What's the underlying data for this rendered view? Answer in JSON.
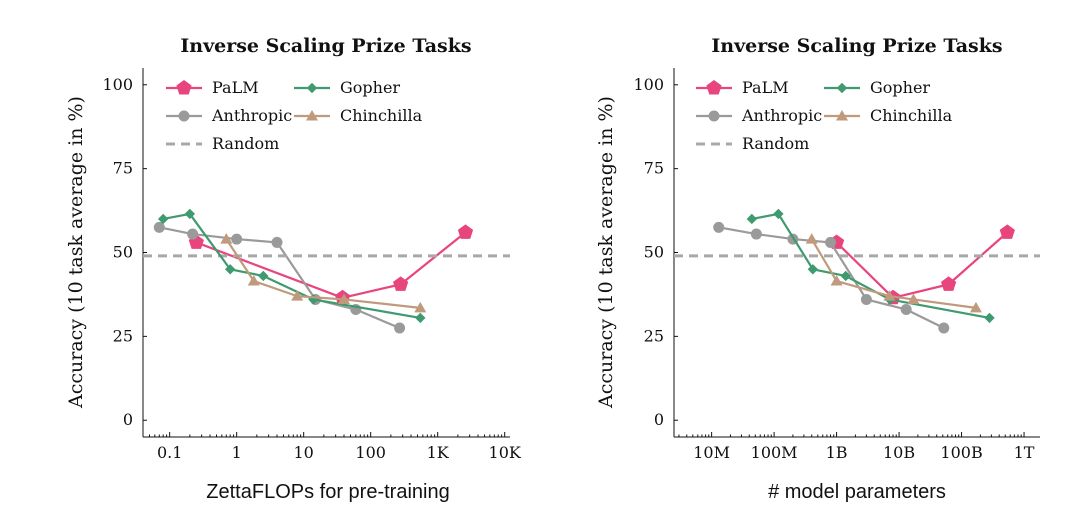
{
  "colors": {
    "PaLM": "#e8457e",
    "Gopher": "#3f9a6f",
    "Anthropic": "#9a9a9a",
    "Chinchilla": "#c09a7c",
    "Random": "#a8a8a8"
  },
  "chart_data": [
    {
      "type": "line",
      "title": "Inverse Scaling Prize Tasks",
      "xlabel": "ZettaFLOPs for pre-training",
      "ylabel": "Accuracy (10 task average in %)",
      "xscale": "log",
      "xlim": [
        0.04,
        12000
      ],
      "ylim": [
        -5,
        105
      ],
      "xticks": [
        0.1,
        1,
        10,
        100,
        1000,
        10000
      ],
      "xtick_labels": [
        "0.1",
        "1",
        "10",
        "100",
        "1K",
        "10K"
      ],
      "yticks": [
        0,
        25,
        50,
        75,
        100
      ],
      "ytick_labels": [
        "0",
        "25",
        "50",
        "75",
        "100"
      ],
      "legend_position": "top",
      "series": [
        {
          "name": "PaLM",
          "marker": "pentagon",
          "x": [
            0.25,
            38,
            280,
            2600
          ],
          "y": [
            53,
            36.5,
            40.5,
            56
          ]
        },
        {
          "name": "Anthropic",
          "marker": "circle",
          "x": [
            0.07,
            0.22,
            1,
            4,
            15,
            60,
            270
          ],
          "y": [
            57.5,
            55.5,
            54,
            53,
            36,
            33,
            27.5
          ]
        },
        {
          "name": "Random",
          "marker": "none",
          "dashed": true,
          "y_const": 49
        },
        {
          "name": "Gopher",
          "marker": "diamond",
          "x": [
            0.08,
            0.2,
            0.8,
            2.5,
            14,
            550
          ],
          "y": [
            60,
            61.5,
            45,
            43,
            36,
            30.5
          ]
        },
        {
          "name": "Chinchilla",
          "marker": "triangle",
          "x": [
            0.7,
            1.8,
            8,
            40,
            550
          ],
          "y": [
            54,
            41.5,
            37,
            36,
            33.5
          ]
        }
      ]
    },
    {
      "type": "line",
      "title": "Inverse Scaling Prize Tasks",
      "xlabel": "# model parameters",
      "ylabel": "Accuracy (10 task average in %)",
      "xscale": "log",
      "xlim": [
        2500000,
        1800000000000
      ],
      "ylim": [
        -5,
        105
      ],
      "xticks": [
        10000000,
        100000000,
        1000000000,
        10000000000,
        100000000000,
        1000000000000
      ],
      "xtick_labels": [
        "10M",
        "100M",
        "1B",
        "10B",
        "100B",
        "1T"
      ],
      "yticks": [
        0,
        25,
        50,
        75,
        100
      ],
      "ytick_labels": [
        "0",
        "25",
        "50",
        "75",
        "100"
      ],
      "legend_position": "top",
      "series": [
        {
          "name": "PaLM",
          "marker": "pentagon",
          "x": [
            1000000000,
            8000000000,
            62000000000,
            540000000000
          ],
          "y": [
            53,
            36.5,
            40.5,
            56
          ]
        },
        {
          "name": "Anthropic",
          "marker": "circle",
          "x": [
            13000000,
            52000000,
            200000000,
            800000000,
            3000000000,
            13000000000,
            52000000000
          ],
          "y": [
            57.5,
            55.5,
            54,
            53,
            36,
            33,
            27.5
          ]
        },
        {
          "name": "Random",
          "marker": "none",
          "dashed": true,
          "y_const": 49
        },
        {
          "name": "Gopher",
          "marker": "diamond",
          "x": [
            44000000,
            117000000,
            417000000,
            1400000000,
            7100000000,
            280000000000
          ],
          "y": [
            60,
            61.5,
            45,
            43,
            36,
            30.5
          ]
        },
        {
          "name": "Chinchilla",
          "marker": "triangle",
          "x": [
            400000000,
            1000000000,
            7000000000,
            17000000000,
            170000000000
          ],
          "y": [
            54,
            41.5,
            37,
            36,
            33.5
          ]
        }
      ]
    }
  ]
}
